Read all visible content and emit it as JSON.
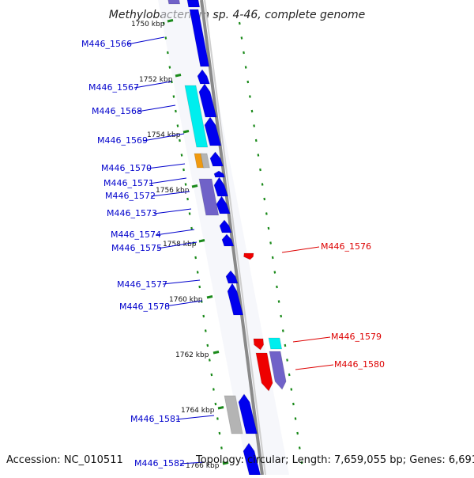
{
  "title": "Methylobacterium sp. 4-46, complete genome",
  "accession": "Accession: NC_010511",
  "topology": "Topology: circular; Length: 7,659,055 bp; Genes: 6,691",
  "colors": {
    "blue": "#0000ee",
    "cyan": "#00eeee",
    "slate": "#7062c8",
    "orange": "#f09a10",
    "gray": "#b4b4b4",
    "red": "#ee0000",
    "dot_green": "#1a8a1a",
    "backbone": "#8a8a8a",
    "label_blue": "#0000cc",
    "label_red": "#dd0000"
  },
  "kbp_ticks": [
    {
      "id": "1750",
      "label": "1750 kbp"
    },
    {
      "id": "1752",
      "label": "1752 kbp"
    },
    {
      "id": "1754",
      "label": "1754 kbp"
    },
    {
      "id": "1756",
      "label": "1756 kbp"
    },
    {
      "id": "1758",
      "label": "1758 kbp"
    },
    {
      "id": "1760",
      "label": "1760 kbp"
    },
    {
      "id": "1762",
      "label": "1762 kbp"
    },
    {
      "id": "1764",
      "label": "1764 kbp"
    },
    {
      "id": "1766",
      "label": "1766 kbp"
    }
  ],
  "genes": [
    {
      "id": "M446_1566",
      "label": "M446_1566",
      "strand": "left"
    },
    {
      "id": "M446_1567",
      "label": "M446_1567",
      "strand": "left"
    },
    {
      "id": "M446_1568",
      "label": "M446_1568",
      "strand": "left"
    },
    {
      "id": "M446_1569",
      "label": "M446_1569",
      "strand": "left"
    },
    {
      "id": "M446_1570",
      "label": "M446_1570",
      "strand": "left"
    },
    {
      "id": "M446_1571",
      "label": "M446_1571",
      "strand": "left"
    },
    {
      "id": "M446_1572",
      "label": "M446_1572",
      "strand": "left"
    },
    {
      "id": "M446_1573",
      "label": "M446_1573",
      "strand": "left"
    },
    {
      "id": "M446_1574",
      "label": "M446_1574",
      "strand": "left"
    },
    {
      "id": "M446_1575",
      "label": "M446_1575",
      "strand": "left"
    },
    {
      "id": "M446_1576",
      "label": "M446_1576",
      "strand": "right"
    },
    {
      "id": "M446_1577",
      "label": "M446_1577",
      "strand": "left"
    },
    {
      "id": "M446_1578",
      "label": "M446_1578",
      "strand": "left"
    },
    {
      "id": "M446_1579",
      "label": "M446_1579",
      "strand": "right"
    },
    {
      "id": "M446_1580",
      "label": "M446_1580",
      "strand": "right"
    },
    {
      "id": "M446_1581",
      "label": "M446_1581",
      "strand": "left"
    },
    {
      "id": "M446_1582",
      "label": "M446_1582",
      "strand": "left"
    }
  ]
}
